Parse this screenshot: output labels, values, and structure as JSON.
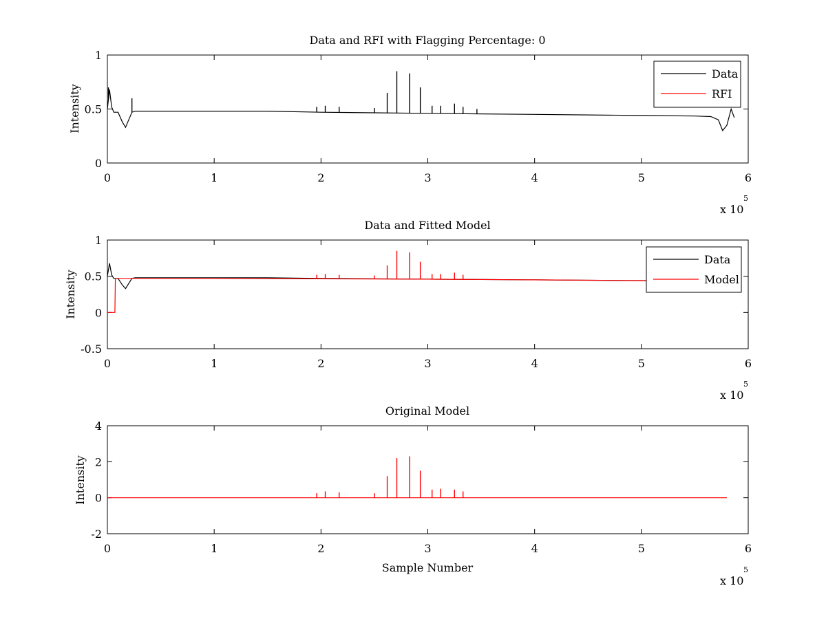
{
  "chart_data": [
    {
      "type": "line",
      "title": "Data and RFI with Flagging Percentage: 0",
      "xlabel": "",
      "ylabel": "Intensity",
      "xlim": [
        0,
        600000
      ],
      "ylim": [
        0,
        1
      ],
      "x_ticks": [
        0,
        1,
        2,
        3,
        4,
        5,
        6
      ],
      "y_ticks": [
        "0",
        "0.5",
        "1"
      ],
      "y_tick_values": [
        0,
        0.5,
        1
      ],
      "x_multiplier": "x 10",
      "x_multiplier_exp": "5",
      "grid": false,
      "legend_position": "top-right",
      "legend": [
        {
          "name": "Data",
          "color": "#000000"
        },
        {
          "name": "RFI",
          "color": "#ff0000"
        }
      ],
      "series": [
        {
          "name": "Data",
          "color": "#000000",
          "x": [
            0,
            2000,
            4000,
            6000,
            10000,
            14000,
            17000,
            20000,
            23000,
            26000,
            30000,
            50000,
            100000,
            150000,
            200000,
            250000,
            300000,
            350000,
            400000,
            450000,
            500000,
            550000,
            565000,
            572000,
            576000,
            580000,
            584000,
            587000
          ],
          "y": [
            0.5,
            0.68,
            0.52,
            0.47,
            0.47,
            0.38,
            0.33,
            0.4,
            0.47,
            0.48,
            0.48,
            0.48,
            0.48,
            0.48,
            0.47,
            0.465,
            0.46,
            0.455,
            0.45,
            0.445,
            0.44,
            0.435,
            0.43,
            0.4,
            0.3,
            0.35,
            0.5,
            0.42
          ],
          "spikes": [
            {
              "x": 1000,
              "y": 0.7
            },
            {
              "x": 23000,
              "y": 0.6
            },
            {
              "x": 196000,
              "y": 0.52
            },
            {
              "x": 204000,
              "y": 0.53
            },
            {
              "x": 217000,
              "y": 0.52
            },
            {
              "x": 250000,
              "y": 0.51
            },
            {
              "x": 262000,
              "y": 0.65
            },
            {
              "x": 271000,
              "y": 0.85
            },
            {
              "x": 283000,
              "y": 0.83
            },
            {
              "x": 293000,
              "y": 0.7
            },
            {
              "x": 304000,
              "y": 0.53
            },
            {
              "x": 312000,
              "y": 0.53
            },
            {
              "x": 325000,
              "y": 0.55
            },
            {
              "x": 333000,
              "y": 0.52
            },
            {
              "x": 346000,
              "y": 0.5
            }
          ]
        },
        {
          "name": "RFI",
          "color": "#ff0000",
          "x": [],
          "y": []
        }
      ]
    },
    {
      "type": "line",
      "title": "Data and Fitted Model",
      "xlabel": "",
      "ylabel": "Intensity",
      "xlim": [
        0,
        600000
      ],
      "ylim": [
        -0.5,
        1
      ],
      "x_ticks": [
        0,
        1,
        2,
        3,
        4,
        5,
        6
      ],
      "y_ticks": [
        "-0.5",
        "0",
        "0.5",
        "1"
      ],
      "y_tick_values": [
        -0.5,
        0,
        0.5,
        1
      ],
      "x_multiplier": "x 10",
      "x_multiplier_exp": "5",
      "grid": false,
      "legend_position": "top-right",
      "legend": [
        {
          "name": "Data",
          "color": "#000000"
        },
        {
          "name": "Model",
          "color": "#ff0000"
        }
      ],
      "series": [
        {
          "name": "Data",
          "color": "#000000",
          "x": [
            0,
            2000,
            4000,
            6000,
            10000,
            14000,
            17000,
            20000,
            23000,
            26000,
            30000,
            50000,
            100000,
            150000,
            200000,
            250000,
            300000,
            350000,
            400000,
            450000,
            500000,
            550000,
            565000,
            572000,
            576000,
            580000,
            584000,
            587000
          ],
          "y": [
            0.5,
            0.68,
            0.52,
            0.47,
            0.47,
            0.38,
            0.33,
            0.4,
            0.47,
            0.48,
            0.48,
            0.48,
            0.48,
            0.48,
            0.47,
            0.465,
            0.46,
            0.455,
            0.45,
            0.445,
            0.44,
            0.435,
            0.43,
            0.4,
            0.3,
            0.35,
            0.5,
            0.42
          ]
        },
        {
          "name": "Model",
          "color": "#ff0000",
          "x": [
            0,
            7000,
            7500,
            30000,
            100000,
            200000,
            300000,
            400000,
            500000,
            505000
          ],
          "y": [
            0,
            0,
            0.47,
            0.47,
            0.47,
            0.465,
            0.46,
            0.45,
            0.44,
            0.44
          ],
          "spikes": [
            {
              "x": 196000,
              "y": 0.52
            },
            {
              "x": 204000,
              "y": 0.53
            },
            {
              "x": 217000,
              "y": 0.52
            },
            {
              "x": 250000,
              "y": 0.51
            },
            {
              "x": 262000,
              "y": 0.65
            },
            {
              "x": 271000,
              "y": 0.85
            },
            {
              "x": 283000,
              "y": 0.83
            },
            {
              "x": 293000,
              "y": 0.7
            },
            {
              "x": 304000,
              "y": 0.53
            },
            {
              "x": 312000,
              "y": 0.53
            },
            {
              "x": 325000,
              "y": 0.55
            },
            {
              "x": 333000,
              "y": 0.52
            }
          ]
        }
      ]
    },
    {
      "type": "line",
      "title": "Original Model",
      "xlabel": "Sample Number",
      "ylabel": "Intensity",
      "xlim": [
        0,
        600000
      ],
      "ylim": [
        -2,
        4
      ],
      "x_ticks": [
        0,
        1,
        2,
        3,
        4,
        5,
        6
      ],
      "y_ticks": [
        "-2",
        "0",
        "2",
        "4"
      ],
      "y_tick_values": [
        -2,
        0,
        2,
        4
      ],
      "x_multiplier": "x 10",
      "x_multiplier_exp": "5",
      "grid": false,
      "series": [
        {
          "name": "",
          "color": "#ff0000",
          "x": [
            0,
            580000
          ],
          "y": [
            0,
            0
          ],
          "spikes": [
            {
              "x": 196000,
              "y": 0.25
            },
            {
              "x": 204000,
              "y": 0.35
            },
            {
              "x": 217000,
              "y": 0.3
            },
            {
              "x": 250000,
              "y": 0.25
            },
            {
              "x": 262000,
              "y": 1.2
            },
            {
              "x": 271000,
              "y": 2.2
            },
            {
              "x": 283000,
              "y": 2.3
            },
            {
              "x": 293000,
              "y": 1.5
            },
            {
              "x": 304000,
              "y": 0.45
            },
            {
              "x": 312000,
              "y": 0.5
            },
            {
              "x": 325000,
              "y": 0.45
            },
            {
              "x": 333000,
              "y": 0.35
            }
          ]
        }
      ]
    }
  ]
}
